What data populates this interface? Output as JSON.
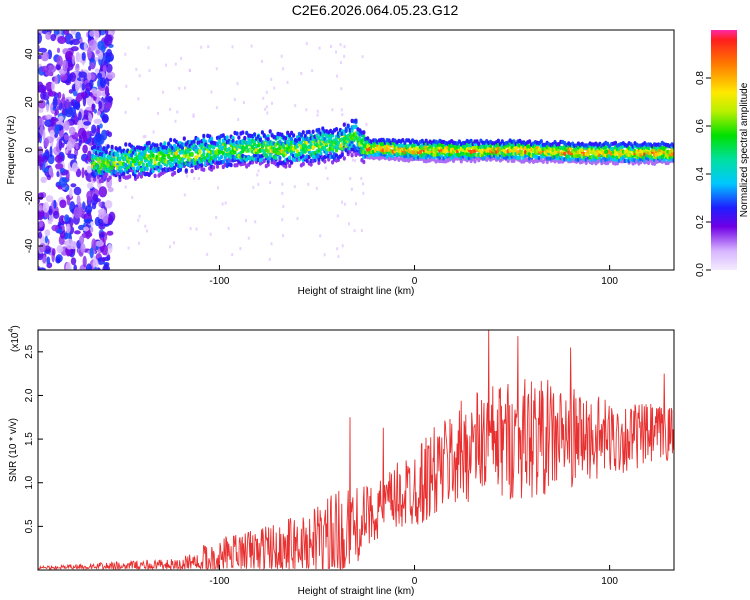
{
  "chart_data": [
    {
      "type": "heatmap",
      "title": "C2E6.2026.064.05.23.G12",
      "xlabel": "Height of straight line (km)",
      "ylabel": "Frequency (Hz)",
      "xlim": [
        -193,
        133
      ],
      "ylim": [
        -50,
        50
      ],
      "xticks": [
        -100,
        0,
        100
      ],
      "yticks": [
        -40,
        -20,
        0,
        20,
        40
      ],
      "colorbar": {
        "label": "Normalized spectral amplitude",
        "range": [
          0,
          1
        ],
        "ticks": [
          "0.0",
          "0.2",
          "0.4",
          "0.6",
          "0.8"
        ]
      },
      "ridge": {
        "description": "dominant spectral ridge near 0 Hz",
        "points": [
          {
            "x": -160,
            "y": -5
          },
          {
            "x": -140,
            "y": -4
          },
          {
            "x": -120,
            "y": -2
          },
          {
            "x": -100,
            "y": 0
          },
          {
            "x": -80,
            "y": 1
          },
          {
            "x": -60,
            "y": 1
          },
          {
            "x": -40,
            "y": 3
          },
          {
            "x": -30,
            "y": 6
          },
          {
            "x": -25,
            "y": 1
          },
          {
            "x": 0,
            "y": 0
          },
          {
            "x": 50,
            "y": 0
          },
          {
            "x": 100,
            "y": -1
          },
          {
            "x": 133,
            "y": -1
          }
        ]
      }
    },
    {
      "type": "line",
      "xlabel": "Height of straight line (km)",
      "ylabel": "SNR (10 * v/v)",
      "y_scale_label": "(x10",
      "y_scale_exponent": "4",
      "xlim": [
        -193,
        133
      ],
      "ylim": [
        0,
        2.75
      ],
      "xticks": [
        -100,
        0,
        100
      ],
      "yticks": [
        "0.5",
        "1.0",
        "1.5",
        "2.0",
        "2.5"
      ],
      "series": [
        {
          "name": "SNR",
          "color": "#e83030",
          "envelope": [
            {
              "x": -193,
              "base": 0.02,
              "amp": 0.03
            },
            {
              "x": -150,
              "base": 0.04,
              "amp": 0.08
            },
            {
              "x": -120,
              "base": 0.06,
              "amp": 0.1
            },
            {
              "x": -105,
              "base": 0.15,
              "amp": 0.25
            },
            {
              "x": -80,
              "base": 0.25,
              "amp": 0.35
            },
            {
              "x": -60,
              "base": 0.3,
              "amp": 0.45
            },
            {
              "x": -40,
              "base": 0.4,
              "amp": 0.7
            },
            {
              "x": -20,
              "base": 0.7,
              "amp": 0.4
            },
            {
              "x": 0,
              "base": 1.0,
              "amp": 0.6
            },
            {
              "x": 30,
              "base": 1.5,
              "amp": 0.8
            },
            {
              "x": 60,
              "base": 1.6,
              "amp": 0.9
            },
            {
              "x": 100,
              "base": 1.55,
              "amp": 0.55
            },
            {
              "x": 133,
              "base": 1.6,
              "amp": 0.4
            }
          ],
          "peaks": [
            {
              "x": -33,
              "y": 1.75
            },
            {
              "x": -16,
              "y": 1.63
            },
            {
              "x": 38,
              "y": 2.78
            },
            {
              "x": 53,
              "y": 2.68
            },
            {
              "x": 80,
              "y": 2.55
            },
            {
              "x": 128,
              "y": 2.25
            }
          ]
        }
      ]
    }
  ]
}
